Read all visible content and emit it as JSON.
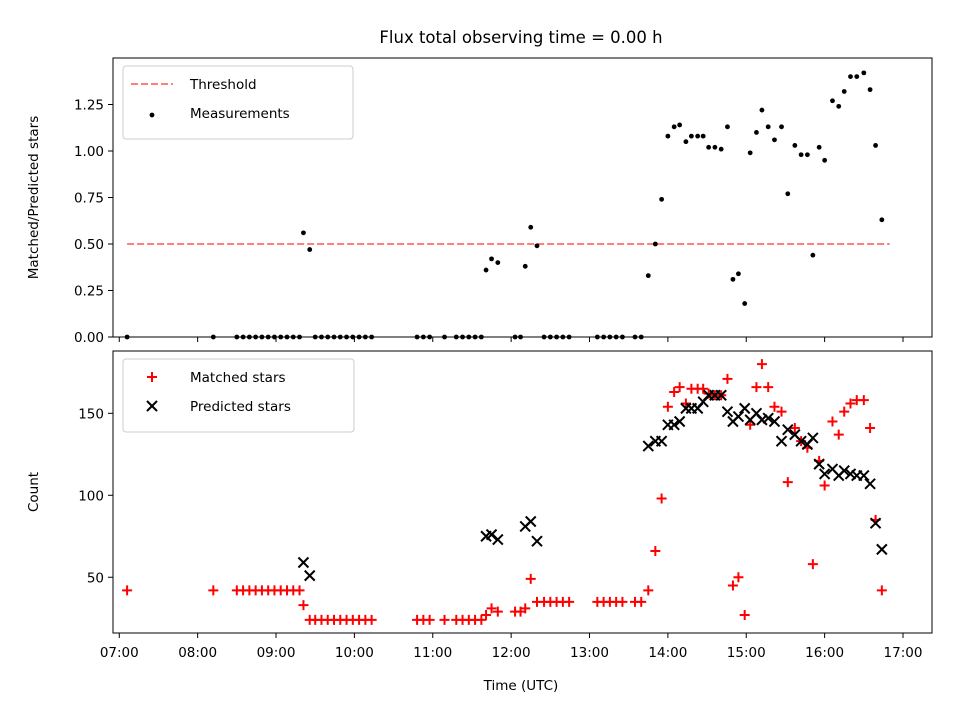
{
  "figure": {
    "title": "Flux total observing time = 0.00 h",
    "xlabel": "Time (UTC)",
    "xticks": [
      "07:00",
      "08:00",
      "09:00",
      "10:00",
      "11:00",
      "12:00",
      "13:00",
      "14:00",
      "15:00",
      "16:00",
      "17:00"
    ]
  },
  "colors": {
    "threshold": "#ff7f7f",
    "measurements": "#000000",
    "matched": "#ff0000",
    "predicted": "#000000"
  },
  "chart_data": [
    {
      "type": "scatter",
      "ylabel": "Matched/Predicted stars",
      "xlim": [
        6.92,
        17.37
      ],
      "ylim": [
        0,
        1.5
      ],
      "yticks": [
        "0.00",
        "0.25",
        "0.50",
        "0.75",
        "1.00",
        "1.25"
      ],
      "legend": "top-left",
      "grid": false,
      "threshold": {
        "name": "Threshold",
        "value": 0.5,
        "x": [
          7.1,
          16.83
        ]
      },
      "series": [
        {
          "name": "Measurements",
          "points": [
            [
              7.1,
              0
            ],
            [
              8.2,
              0
            ],
            [
              8.5,
              0
            ],
            [
              8.58,
              0
            ],
            [
              8.66,
              0
            ],
            [
              8.74,
              0
            ],
            [
              8.82,
              0
            ],
            [
              8.9,
              0
            ],
            [
              8.98,
              0
            ],
            [
              9.06,
              0
            ],
            [
              9.14,
              0
            ],
            [
              9.22,
              0
            ],
            [
              9.3,
              0
            ],
            [
              9.35,
              0.56
            ],
            [
              9.43,
              0.47
            ],
            [
              9.5,
              0
            ],
            [
              9.58,
              0
            ],
            [
              9.66,
              0
            ],
            [
              9.74,
              0
            ],
            [
              9.82,
              0
            ],
            [
              9.9,
              0
            ],
            [
              9.98,
              0
            ],
            [
              10.06,
              0
            ],
            [
              10.14,
              0
            ],
            [
              10.22,
              0
            ],
            [
              10.8,
              0
            ],
            [
              10.88,
              0
            ],
            [
              10.96,
              0
            ],
            [
              11.15,
              0
            ],
            [
              11.3,
              0
            ],
            [
              11.38,
              0
            ],
            [
              11.46,
              0
            ],
            [
              11.54,
              0
            ],
            [
              11.62,
              0
            ],
            [
              11.68,
              0.36
            ],
            [
              11.75,
              0.42
            ],
            [
              11.83,
              0.4
            ],
            [
              12.05,
              0
            ],
            [
              12.12,
              0
            ],
            [
              12.18,
              0.38
            ],
            [
              12.25,
              0.59
            ],
            [
              12.33,
              0.49
            ],
            [
              12.42,
              0
            ],
            [
              12.5,
              0
            ],
            [
              12.58,
              0
            ],
            [
              12.66,
              0
            ],
            [
              12.74,
              0
            ],
            [
              13.1,
              0
            ],
            [
              13.18,
              0
            ],
            [
              13.26,
              0
            ],
            [
              13.34,
              0
            ],
            [
              13.42,
              0
            ],
            [
              13.58,
              0
            ],
            [
              13.66,
              0
            ],
            [
              13.75,
              0.33
            ],
            [
              13.84,
              0.5
            ],
            [
              13.92,
              0.74
            ],
            [
              14.0,
              1.08
            ],
            [
              14.08,
              1.13
            ],
            [
              14.15,
              1.14
            ],
            [
              14.23,
              1.05
            ],
            [
              14.3,
              1.08
            ],
            [
              14.38,
              1.08
            ],
            [
              14.45,
              1.08
            ],
            [
              14.52,
              1.02
            ],
            [
              14.6,
              1.02
            ],
            [
              14.68,
              1.01
            ],
            [
              14.76,
              1.13
            ],
            [
              14.83,
              0.31
            ],
            [
              14.9,
              0.34
            ],
            [
              14.98,
              0.18
            ],
            [
              15.05,
              0.99
            ],
            [
              15.13,
              1.1
            ],
            [
              15.2,
              1.22
            ],
            [
              15.28,
              1.13
            ],
            [
              15.36,
              1.06
            ],
            [
              15.45,
              1.13
            ],
            [
              15.53,
              0.77
            ],
            [
              15.62,
              1.03
            ],
            [
              15.7,
              0.98
            ],
            [
              15.78,
              0.98
            ],
            [
              15.85,
              0.44
            ],
            [
              15.93,
              1.02
            ],
            [
              16.0,
              0.95
            ],
            [
              16.1,
              1.27
            ],
            [
              16.18,
              1.24
            ],
            [
              16.25,
              1.32
            ],
            [
              16.33,
              1.4
            ],
            [
              16.41,
              1.4
            ],
            [
              16.5,
              1.42
            ],
            [
              16.58,
              1.33
            ],
            [
              16.65,
              1.03
            ],
            [
              16.73,
              0.63
            ]
          ]
        }
      ]
    },
    {
      "type": "scatter",
      "ylabel": "Count",
      "xlim": [
        6.92,
        17.37
      ],
      "ylim": [
        16,
        188
      ],
      "yticks": [
        "50",
        "100",
        "150"
      ],
      "legend": "top-left",
      "grid": false,
      "series": [
        {
          "name": "Matched stars",
          "marker": "plus",
          "points": [
            [
              7.1,
              42
            ],
            [
              8.2,
              42
            ],
            [
              8.5,
              42
            ],
            [
              8.58,
              42
            ],
            [
              8.66,
              42
            ],
            [
              8.74,
              42
            ],
            [
              8.82,
              42
            ],
            [
              8.9,
              42
            ],
            [
              8.98,
              42
            ],
            [
              9.06,
              42
            ],
            [
              9.14,
              42
            ],
            [
              9.22,
              42
            ],
            [
              9.3,
              42
            ],
            [
              9.35,
              33
            ],
            [
              9.43,
              24
            ],
            [
              9.5,
              24
            ],
            [
              9.58,
              24
            ],
            [
              9.66,
              24
            ],
            [
              9.74,
              24
            ],
            [
              9.82,
              24
            ],
            [
              9.9,
              24
            ],
            [
              9.98,
              24
            ],
            [
              10.06,
              24
            ],
            [
              10.14,
              24
            ],
            [
              10.22,
              24
            ],
            [
              10.8,
              24
            ],
            [
              10.88,
              24
            ],
            [
              10.96,
              24
            ],
            [
              11.15,
              24
            ],
            [
              11.3,
              24
            ],
            [
              11.38,
              24
            ],
            [
              11.46,
              24
            ],
            [
              11.54,
              24
            ],
            [
              11.62,
              24
            ],
            [
              11.68,
              27
            ],
            [
              11.75,
              31
            ],
            [
              11.83,
              29
            ],
            [
              12.05,
              29
            ],
            [
              12.12,
              29
            ],
            [
              12.18,
              31
            ],
            [
              12.25,
              49
            ],
            [
              12.33,
              35
            ],
            [
              12.42,
              35
            ],
            [
              12.5,
              35
            ],
            [
              12.58,
              35
            ],
            [
              12.66,
              35
            ],
            [
              12.74,
              35
            ],
            [
              13.1,
              35
            ],
            [
              13.18,
              35
            ],
            [
              13.26,
              35
            ],
            [
              13.34,
              35
            ],
            [
              13.42,
              35
            ],
            [
              13.58,
              35
            ],
            [
              13.66,
              35
            ],
            [
              13.75,
              42
            ],
            [
              13.84,
              66
            ],
            [
              13.92,
              98
            ],
            [
              14.0,
              154
            ],
            [
              14.08,
              163
            ],
            [
              14.15,
              166
            ],
            [
              14.23,
              156
            ],
            [
              14.3,
              165
            ],
            [
              14.38,
              165
            ],
            [
              14.45,
              165
            ],
            [
              14.52,
              162
            ],
            [
              14.6,
              161
            ],
            [
              14.68,
              161
            ],
            [
              14.76,
              171
            ],
            [
              14.83,
              45
            ],
            [
              14.9,
              50
            ],
            [
              14.98,
              27
            ],
            [
              15.05,
              143
            ],
            [
              15.13,
              166
            ],
            [
              15.2,
              180
            ],
            [
              15.28,
              166
            ],
            [
              15.36,
              154
            ],
            [
              15.45,
              151
            ],
            [
              15.53,
              108
            ],
            [
              15.62,
              141
            ],
            [
              15.7,
              133
            ],
            [
              15.78,
              129
            ],
            [
              15.85,
              58
            ],
            [
              15.93,
              121
            ],
            [
              16.0,
              106
            ],
            [
              16.1,
              145
            ],
            [
              16.18,
              137
            ],
            [
              16.25,
              151
            ],
            [
              16.33,
              156
            ],
            [
              16.41,
              158
            ],
            [
              16.5,
              158
            ],
            [
              16.58,
              141
            ],
            [
              16.65,
              85
            ],
            [
              16.73,
              42
            ]
          ]
        },
        {
          "name": "Predicted stars",
          "marker": "x",
          "points": [
            [
              9.35,
              59
            ],
            [
              9.43,
              51
            ],
            [
              11.68,
              75
            ],
            [
              11.75,
              76
            ],
            [
              11.83,
              73
            ],
            [
              12.18,
              81
            ],
            [
              12.25,
              84
            ],
            [
              12.33,
              72
            ],
            [
              13.75,
              130
            ],
            [
              13.84,
              133
            ],
            [
              13.92,
              133
            ],
            [
              14.0,
              143
            ],
            [
              14.08,
              143
            ],
            [
              14.15,
              145
            ],
            [
              14.23,
              153
            ],
            [
              14.3,
              153
            ],
            [
              14.38,
              153
            ],
            [
              14.45,
              157
            ],
            [
              14.52,
              161
            ],
            [
              14.6,
              161
            ],
            [
              14.68,
              161
            ],
            [
              14.76,
              151
            ],
            [
              14.83,
              145
            ],
            [
              14.9,
              148
            ],
            [
              14.98,
              153
            ],
            [
              15.05,
              146
            ],
            [
              15.13,
              150
            ],
            [
              15.2,
              146
            ],
            [
              15.28,
              147
            ],
            [
              15.36,
              145
            ],
            [
              15.45,
              133
            ],
            [
              15.53,
              140
            ],
            [
              15.62,
              137
            ],
            [
              15.7,
              133
            ],
            [
              15.78,
              131
            ],
            [
              15.85,
              135
            ],
            [
              15.93,
              119
            ],
            [
              16.0,
              113
            ],
            [
              16.1,
              116
            ],
            [
              16.18,
              112
            ],
            [
              16.25,
              115
            ],
            [
              16.33,
              113
            ],
            [
              16.41,
              112
            ],
            [
              16.5,
              112
            ],
            [
              16.58,
              107
            ],
            [
              16.65,
              83
            ],
            [
              16.73,
              67
            ]
          ]
        }
      ]
    }
  ]
}
